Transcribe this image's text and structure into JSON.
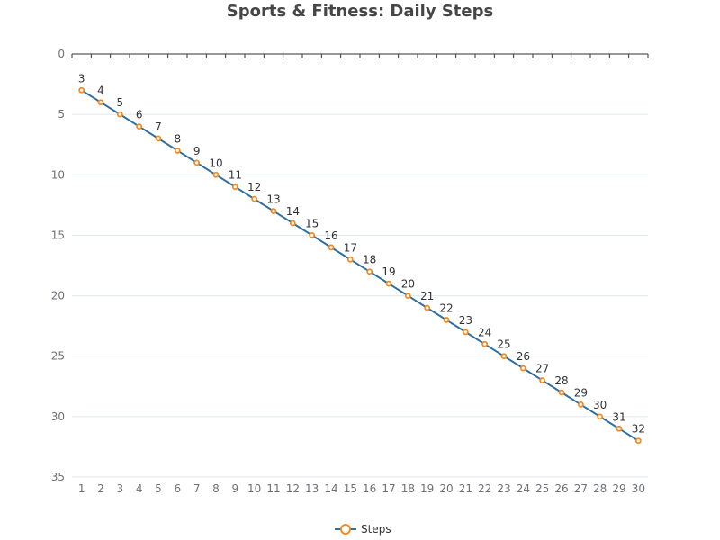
{
  "chart_data": {
    "type": "line",
    "title": "Sports & Fitness: Daily Steps",
    "xlabel": "",
    "ylabel": "",
    "x": [
      1,
      2,
      3,
      4,
      5,
      6,
      7,
      8,
      9,
      10,
      11,
      12,
      13,
      14,
      15,
      16,
      17,
      18,
      19,
      20,
      21,
      22,
      23,
      24,
      25,
      26,
      27,
      28,
      29,
      30
    ],
    "series": [
      {
        "name": "Steps",
        "values": [
          3,
          4,
          5,
          6,
          7,
          8,
          9,
          10,
          11,
          12,
          13,
          14,
          15,
          16,
          17,
          18,
          19,
          20,
          21,
          22,
          23,
          24,
          25,
          26,
          27,
          28,
          29,
          30,
          31,
          32
        ]
      }
    ],
    "ylim": [
      0,
      35
    ],
    "y_ticks": [
      0,
      5,
      10,
      15,
      20,
      25,
      30,
      35
    ],
    "y_inverted": true,
    "x_axis_position": "top",
    "x_labels_position": "bottom",
    "grid": true,
    "data_labels": true,
    "legend": {
      "position": "bottom-center"
    },
    "colors": {
      "line": "#2f6f9f",
      "marker": "#f58b1f",
      "marker_fill": "#ffffff",
      "grid": "#e0e6f1",
      "axis": "#333333",
      "title": "#464646"
    }
  }
}
